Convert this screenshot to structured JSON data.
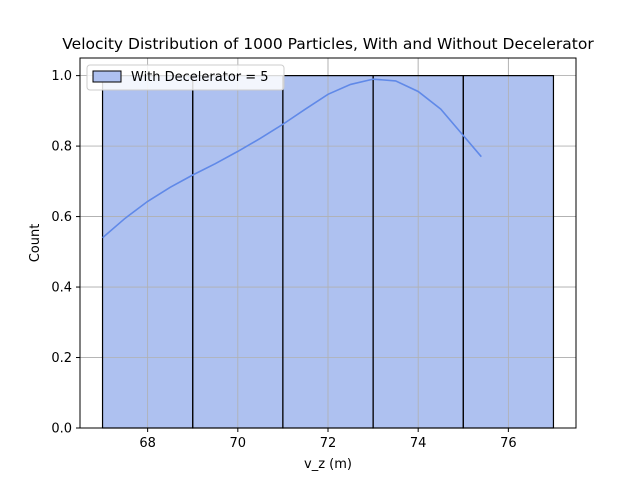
{
  "chart_data": {
    "type": "bar",
    "title": "Velocity Distribution of 1000 Particles, With and Without Decelerator",
    "xlabel": "v_z (m)",
    "ylabel": "Count",
    "xlim": [
      66.5,
      77.5
    ],
    "ylim": [
      0.0,
      1.05
    ],
    "xticks": [
      68,
      70,
      72,
      74,
      76
    ],
    "yticks": [
      0.0,
      0.2,
      0.4,
      0.6,
      0.8,
      1.0
    ],
    "grid": true,
    "legend_position": "top-left",
    "bars": [
      {
        "x0": 67,
        "x1": 69,
        "value": 1.0
      },
      {
        "x0": 69,
        "x1": 71,
        "value": 1.0
      },
      {
        "x0": 71,
        "x1": 73,
        "value": 1.0
      },
      {
        "x0": 73,
        "x1": 75,
        "value": 1.0
      },
      {
        "x0": 75,
        "x1": 77,
        "value": 1.0
      }
    ],
    "series": [
      {
        "name": "With Decelerator = 5",
        "fill_color": "#aec1f0",
        "edge_color": "#000000",
        "line_color": "#6089e8"
      }
    ],
    "kde_curve": {
      "x": [
        67.0,
        67.5,
        68.0,
        68.5,
        69.0,
        69.5,
        70.0,
        70.5,
        71.0,
        71.5,
        72.0,
        72.5,
        73.0,
        73.5,
        74.0,
        74.5,
        75.0,
        75.4
      ],
      "y": [
        0.54,
        0.595,
        0.643,
        0.683,
        0.718,
        0.75,
        0.785,
        0.822,
        0.862,
        0.905,
        0.947,
        0.975,
        0.99,
        0.985,
        0.955,
        0.905,
        0.83,
        0.77
      ]
    }
  }
}
